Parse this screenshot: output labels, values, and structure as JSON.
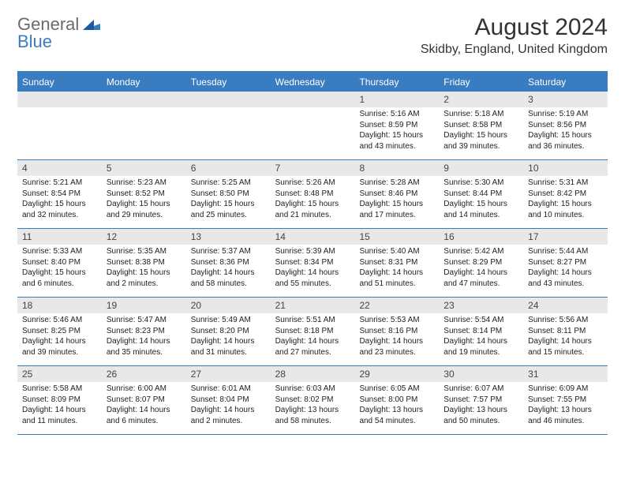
{
  "brand": {
    "part1": "General",
    "part2": "Blue"
  },
  "title": "August 2024",
  "location": "Skidby, England, United Kingdom",
  "colors": {
    "accent": "#3a7cc0",
    "headerText": "#ffffff",
    "dayNumBg": "#e8e8e8",
    "bodyText": "#222222",
    "titleText": "#333333",
    "logoGray": "#6b6b6b"
  },
  "dayHeaders": [
    "Sunday",
    "Monday",
    "Tuesday",
    "Wednesday",
    "Thursday",
    "Friday",
    "Saturday"
  ],
  "weeks": [
    [
      {
        "n": "",
        "sr": "",
        "ss": "",
        "dl": ""
      },
      {
        "n": "",
        "sr": "",
        "ss": "",
        "dl": ""
      },
      {
        "n": "",
        "sr": "",
        "ss": "",
        "dl": ""
      },
      {
        "n": "",
        "sr": "",
        "ss": "",
        "dl": ""
      },
      {
        "n": "1",
        "sr": "Sunrise: 5:16 AM",
        "ss": "Sunset: 8:59 PM",
        "dl": "Daylight: 15 hours and 43 minutes."
      },
      {
        "n": "2",
        "sr": "Sunrise: 5:18 AM",
        "ss": "Sunset: 8:58 PM",
        "dl": "Daylight: 15 hours and 39 minutes."
      },
      {
        "n": "3",
        "sr": "Sunrise: 5:19 AM",
        "ss": "Sunset: 8:56 PM",
        "dl": "Daylight: 15 hours and 36 minutes."
      }
    ],
    [
      {
        "n": "4",
        "sr": "Sunrise: 5:21 AM",
        "ss": "Sunset: 8:54 PM",
        "dl": "Daylight: 15 hours and 32 minutes."
      },
      {
        "n": "5",
        "sr": "Sunrise: 5:23 AM",
        "ss": "Sunset: 8:52 PM",
        "dl": "Daylight: 15 hours and 29 minutes."
      },
      {
        "n": "6",
        "sr": "Sunrise: 5:25 AM",
        "ss": "Sunset: 8:50 PM",
        "dl": "Daylight: 15 hours and 25 minutes."
      },
      {
        "n": "7",
        "sr": "Sunrise: 5:26 AM",
        "ss": "Sunset: 8:48 PM",
        "dl": "Daylight: 15 hours and 21 minutes."
      },
      {
        "n": "8",
        "sr": "Sunrise: 5:28 AM",
        "ss": "Sunset: 8:46 PM",
        "dl": "Daylight: 15 hours and 17 minutes."
      },
      {
        "n": "9",
        "sr": "Sunrise: 5:30 AM",
        "ss": "Sunset: 8:44 PM",
        "dl": "Daylight: 15 hours and 14 minutes."
      },
      {
        "n": "10",
        "sr": "Sunrise: 5:31 AM",
        "ss": "Sunset: 8:42 PM",
        "dl": "Daylight: 15 hours and 10 minutes."
      }
    ],
    [
      {
        "n": "11",
        "sr": "Sunrise: 5:33 AM",
        "ss": "Sunset: 8:40 PM",
        "dl": "Daylight: 15 hours and 6 minutes."
      },
      {
        "n": "12",
        "sr": "Sunrise: 5:35 AM",
        "ss": "Sunset: 8:38 PM",
        "dl": "Daylight: 15 hours and 2 minutes."
      },
      {
        "n": "13",
        "sr": "Sunrise: 5:37 AM",
        "ss": "Sunset: 8:36 PM",
        "dl": "Daylight: 14 hours and 58 minutes."
      },
      {
        "n": "14",
        "sr": "Sunrise: 5:39 AM",
        "ss": "Sunset: 8:34 PM",
        "dl": "Daylight: 14 hours and 55 minutes."
      },
      {
        "n": "15",
        "sr": "Sunrise: 5:40 AM",
        "ss": "Sunset: 8:31 PM",
        "dl": "Daylight: 14 hours and 51 minutes."
      },
      {
        "n": "16",
        "sr": "Sunrise: 5:42 AM",
        "ss": "Sunset: 8:29 PM",
        "dl": "Daylight: 14 hours and 47 minutes."
      },
      {
        "n": "17",
        "sr": "Sunrise: 5:44 AM",
        "ss": "Sunset: 8:27 PM",
        "dl": "Daylight: 14 hours and 43 minutes."
      }
    ],
    [
      {
        "n": "18",
        "sr": "Sunrise: 5:46 AM",
        "ss": "Sunset: 8:25 PM",
        "dl": "Daylight: 14 hours and 39 minutes."
      },
      {
        "n": "19",
        "sr": "Sunrise: 5:47 AM",
        "ss": "Sunset: 8:23 PM",
        "dl": "Daylight: 14 hours and 35 minutes."
      },
      {
        "n": "20",
        "sr": "Sunrise: 5:49 AM",
        "ss": "Sunset: 8:20 PM",
        "dl": "Daylight: 14 hours and 31 minutes."
      },
      {
        "n": "21",
        "sr": "Sunrise: 5:51 AM",
        "ss": "Sunset: 8:18 PM",
        "dl": "Daylight: 14 hours and 27 minutes."
      },
      {
        "n": "22",
        "sr": "Sunrise: 5:53 AM",
        "ss": "Sunset: 8:16 PM",
        "dl": "Daylight: 14 hours and 23 minutes."
      },
      {
        "n": "23",
        "sr": "Sunrise: 5:54 AM",
        "ss": "Sunset: 8:14 PM",
        "dl": "Daylight: 14 hours and 19 minutes."
      },
      {
        "n": "24",
        "sr": "Sunrise: 5:56 AM",
        "ss": "Sunset: 8:11 PM",
        "dl": "Daylight: 14 hours and 15 minutes."
      }
    ],
    [
      {
        "n": "25",
        "sr": "Sunrise: 5:58 AM",
        "ss": "Sunset: 8:09 PM",
        "dl": "Daylight: 14 hours and 11 minutes."
      },
      {
        "n": "26",
        "sr": "Sunrise: 6:00 AM",
        "ss": "Sunset: 8:07 PM",
        "dl": "Daylight: 14 hours and 6 minutes."
      },
      {
        "n": "27",
        "sr": "Sunrise: 6:01 AM",
        "ss": "Sunset: 8:04 PM",
        "dl": "Daylight: 14 hours and 2 minutes."
      },
      {
        "n": "28",
        "sr": "Sunrise: 6:03 AM",
        "ss": "Sunset: 8:02 PM",
        "dl": "Daylight: 13 hours and 58 minutes."
      },
      {
        "n": "29",
        "sr": "Sunrise: 6:05 AM",
        "ss": "Sunset: 8:00 PM",
        "dl": "Daylight: 13 hours and 54 minutes."
      },
      {
        "n": "30",
        "sr": "Sunrise: 6:07 AM",
        "ss": "Sunset: 7:57 PM",
        "dl": "Daylight: 13 hours and 50 minutes."
      },
      {
        "n": "31",
        "sr": "Sunrise: 6:09 AM",
        "ss": "Sunset: 7:55 PM",
        "dl": "Daylight: 13 hours and 46 minutes."
      }
    ]
  ]
}
